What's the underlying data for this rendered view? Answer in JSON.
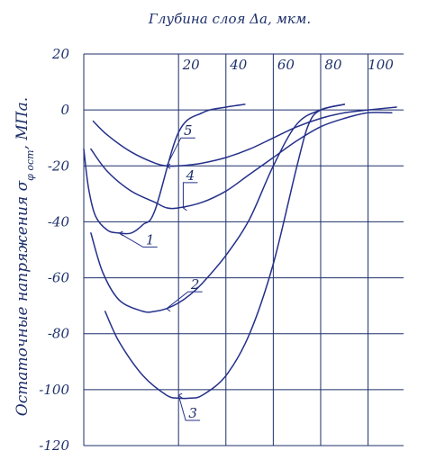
{
  "chart_data": {
    "type": "line",
    "title": "Глубина слоя Δa, мкм.",
    "ylabel": "Остаточные напряжения σ",
    "ylabel_sub": "φ ост",
    "ylabel_unit": ", МПа.",
    "xlim": [
      -20,
      115
    ],
    "ylim": [
      -120,
      20
    ],
    "x_ticks": [
      20,
      40,
      60,
      80,
      100
    ],
    "y_ticks": [
      20,
      0,
      -20,
      -40,
      -60,
      -80,
      -100,
      -120
    ],
    "grid": true,
    "series": [
      {
        "name": "1",
        "x": [
          -20,
          -18,
          -15,
          -10,
          -5,
          0,
          5,
          10,
          20,
          30,
          40,
          48
        ],
        "y": [
          -14,
          -28,
          -38,
          -43,
          -44,
          -44,
          -41,
          -36,
          -8,
          -1,
          1,
          2
        ]
      },
      {
        "name": "2",
        "x": [
          -17,
          -12,
          -5,
          5,
          10,
          15,
          20,
          25,
          30,
          40,
          50,
          60,
          70,
          80,
          90
        ],
        "y": [
          -44,
          -58,
          -68,
          -72,
          -72,
          -71,
          -69,
          -66,
          -62,
          -52,
          -39,
          -20,
          -5,
          0,
          2
        ]
      },
      {
        "name": "3",
        "x": [
          -11,
          -5,
          5,
          15,
          20,
          25,
          30,
          40,
          50,
          60,
          70,
          75,
          80,
          90
        ],
        "y": [
          -72,
          -83,
          -95,
          -102,
          -103,
          -103,
          -102,
          -95,
          -80,
          -55,
          -20,
          -5,
          0,
          2
        ]
      },
      {
        "name": "4",
        "x": [
          -17,
          -10,
          0,
          10,
          15,
          20,
          30,
          40,
          50,
          60,
          70,
          80,
          90,
          100,
          110
        ],
        "y": [
          -14,
          -22,
          -29,
          -33,
          -35,
          -35,
          -33,
          -29,
          -23,
          -17,
          -11,
          -6,
          -3,
          -1,
          -1
        ]
      },
      {
        "name": "5",
        "x": [
          -16,
          -10,
          0,
          10,
          15,
          20,
          30,
          40,
          50,
          60,
          70,
          80,
          90,
          100,
          112
        ],
        "y": [
          -4,
          -9,
          -15,
          -19,
          -20,
          -20,
          -19,
          -17,
          -14,
          -10,
          -6,
          -3,
          -1,
          0,
          1
        ]
      }
    ],
    "annotations": [
      {
        "text": "1",
        "at": [
          -5,
          -44
        ],
        "label": [
          5,
          -49
        ]
      },
      {
        "text": "2",
        "at": [
          15,
          -71
        ],
        "label": [
          24,
          -65
        ]
      },
      {
        "text": "3",
        "at": [
          20,
          -102
        ],
        "label": [
          23,
          -111
        ]
      },
      {
        "text": "4",
        "at": [
          22,
          -35
        ],
        "label": [
          22,
          -26
        ]
      },
      {
        "text": "5",
        "at": [
          15,
          -20
        ],
        "label": [
          21,
          -10
        ]
      }
    ]
  }
}
